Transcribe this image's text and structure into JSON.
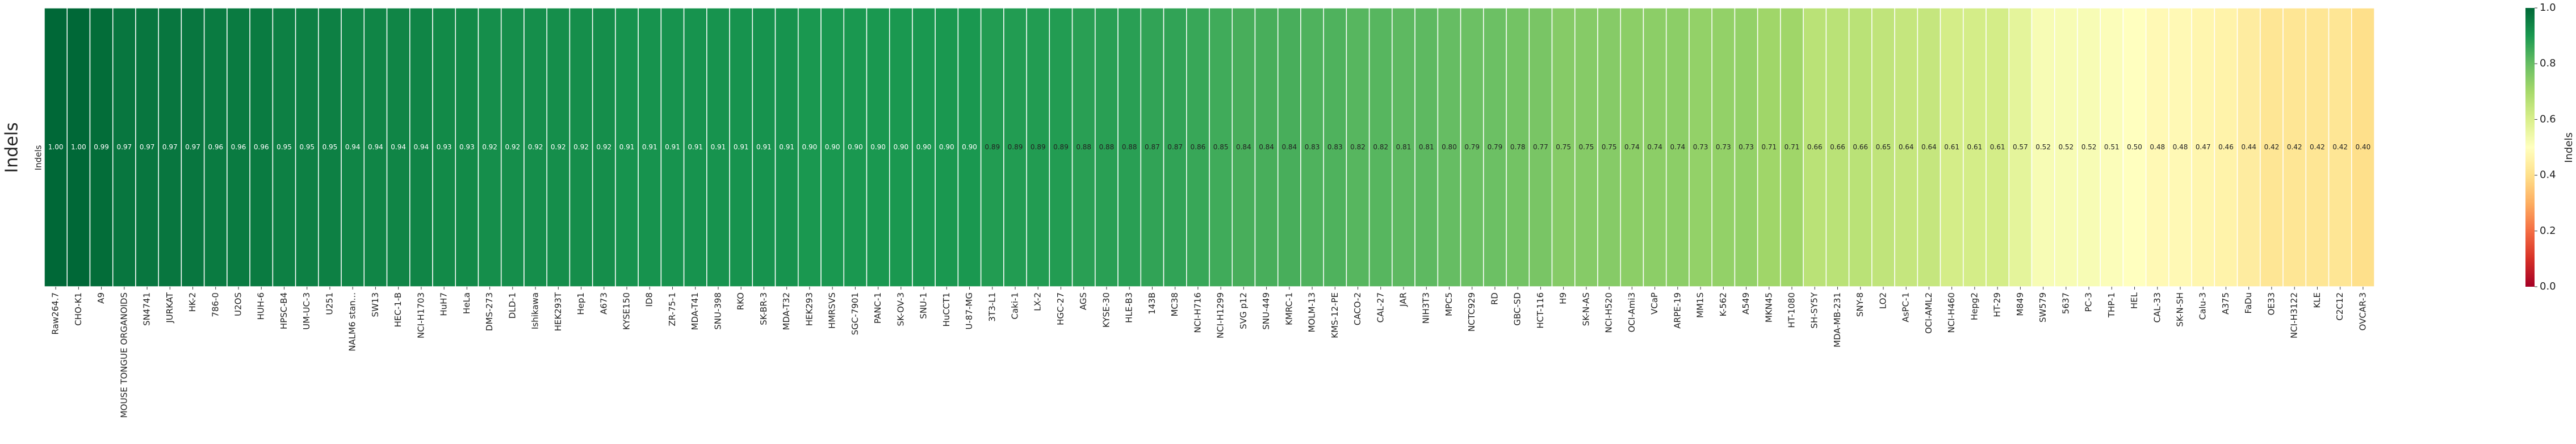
{
  "chart_data": {
    "type": "heatmap",
    "ylabel": "Indels",
    "rows": [
      "Indels"
    ],
    "colormap": "RdYlGn",
    "clim": [
      0,
      1
    ],
    "cticks": [
      {
        "value": 0,
        "label": "0.0"
      },
      {
        "value": 0.2,
        "label": "0.2"
      },
      {
        "value": 0.4,
        "label": "0.4"
      },
      {
        "value": 0.6,
        "label": "0.6"
      },
      {
        "value": 0.8,
        "label": "0.8"
      },
      {
        "value": 1,
        "label": "1.0"
      }
    ],
    "clabel": "Indels",
    "categories": [
      "Raw264.7",
      "CHO-K1",
      "A9",
      "MOUSE TONGUE ORGANOIDS",
      "SN4741",
      "JURKAT",
      "HK-2",
      "786-0",
      "U2OS",
      "HUH-6",
      "HPSC-B4",
      "UM-UC-3",
      "U251",
      "NALM6 stan...",
      "SW13",
      "HEC-1-B",
      "NCI-H1703",
      "HuH7",
      "HeLa",
      "DMS-273",
      "DLD-1",
      "Ishikawa",
      "HEK293T",
      "Hep1",
      "A673",
      "KYSE150",
      "ID8",
      "ZR-75-1",
      "MDA-T41",
      "SNU-398",
      "RKO",
      "SK-BR-3",
      "MDA-T32",
      "HEK293",
      "HMRSVS",
      "SGC-7901",
      "PANC-1",
      "SK-OV-3",
      "SNU-1",
      "HuCCT1",
      "U-87-MG",
      "3T3-L1",
      "Caki-1",
      "LX-2",
      "HGC-27",
      "AGS",
      "KYSE-30",
      "HLE-B3",
      "143B",
      "MC38",
      "NCI-H716",
      "NCI-H1299",
      "SVG p12",
      "SNU-449",
      "KMRC-1",
      "MOLM-13",
      "KMS-12-PE",
      "CACO-2",
      "CAL-27",
      "JAR",
      "NIH3T3",
      "MPC5",
      "NCTC929",
      "RD",
      "GBC-SD",
      "HCT-116",
      "H9",
      "SK-N-AS",
      "NCI-H520",
      "OCI-Ami3",
      "VCaP",
      "ARPE-19",
      "MM1S",
      "K-562",
      "A549",
      "MKN45",
      "HT-1080",
      "SH-SY5Y",
      "MDA-MB-231",
      "SNY-8",
      "LO2",
      "AsPC-1",
      "OCI-AML2",
      "NCI-H460",
      "Hepg2",
      "HT-29",
      "M849",
      "SW579",
      "5637",
      "PC-3",
      "THP-1",
      "HEL",
      "CAL-33",
      "SK-N-SH",
      "Calu-3",
      "A375",
      "FaDu",
      "OE33",
      "NCI-H3122",
      "KLE",
      "C2C12",
      "OVCAR-3"
    ],
    "values": [
      1.0,
      1.0,
      0.99,
      0.97,
      0.97,
      0.97,
      0.97,
      0.96,
      0.96,
      0.96,
      0.95,
      0.95,
      0.95,
      0.94,
      0.94,
      0.94,
      0.94,
      0.93,
      0.93,
      0.92,
      0.92,
      0.92,
      0.92,
      0.92,
      0.92,
      0.91,
      0.91,
      0.91,
      0.91,
      0.91,
      0.91,
      0.91,
      0.91,
      0.9,
      0.9,
      0.9,
      0.9,
      0.9,
      0.9,
      0.9,
      0.9,
      0.89,
      0.89,
      0.89,
      0.89,
      0.88,
      0.88,
      0.88,
      0.87,
      0.87,
      0.86,
      0.85,
      0.84,
      0.84,
      0.84,
      0.83,
      0.83,
      0.82,
      0.82,
      0.81,
      0.81,
      0.8,
      0.79,
      0.79,
      0.78,
      0.77,
      0.75,
      0.75,
      0.75,
      0.74,
      0.74,
      0.74,
      0.73,
      0.73,
      0.73,
      0.71,
      0.71,
      0.66,
      0.66,
      0.66,
      0.65,
      0.64,
      0.64,
      0.61,
      0.61,
      0.61,
      0.57,
      0.52,
      0.52,
      0.52,
      0.51,
      0.5,
      0.48,
      0.48,
      0.47,
      0.46,
      0.44,
      0.42,
      0.42,
      0.42,
      0.42,
      0.4
    ],
    "value_labels": [
      "1.00",
      "1.00",
      "0.99",
      "0.97",
      "0.97",
      "0.97",
      "0.97",
      "0.96",
      "0.96",
      "0.96",
      "0.95",
      "0.95",
      "0.95",
      "0.94",
      "0.94",
      "0.94",
      "0.94",
      "0.93",
      "0.93",
      "0.92",
      "0.92",
      "0.92",
      "0.92",
      "0.92",
      "0.92",
      "0.91",
      "0.91",
      "0.91",
      "0.91",
      "0.91",
      "0.91",
      "0.91",
      "0.91",
      "0.90",
      "0.90",
      "0.90",
      "0.90",
      "0.90",
      "0.90",
      "0.90",
      "0.90",
      "0.89",
      "0.89",
      "0.89",
      "0.89",
      "0.88",
      "0.88",
      "0.88",
      "0.87",
      "0.87",
      "0.86",
      "0.85",
      "0.84",
      "0.84",
      "0.84",
      "0.83",
      "0.83",
      "0.82",
      "0.82",
      "0.81",
      "0.81",
      "0.80",
      "0.79",
      "0.79",
      "0.78",
      "0.77",
      "0.75",
      "0.75",
      "0.75",
      "0.74",
      "0.74",
      "0.74",
      "0.73",
      "0.73",
      "0.73",
      "0.71",
      "0.71",
      "0.66",
      "0.66",
      "0.66",
      "0.65",
      "0.64",
      "0.64",
      "0.61",
      "0.61",
      "0.61",
      "0.57",
      "0.52",
      "0.52",
      "0.52",
      "0.51",
      "0.50",
      "0.48",
      "0.48",
      "0.47",
      "0.46",
      "0.44",
      "0.42",
      "0.42",
      "0.42",
      "0.42",
      "0.40"
    ]
  }
}
